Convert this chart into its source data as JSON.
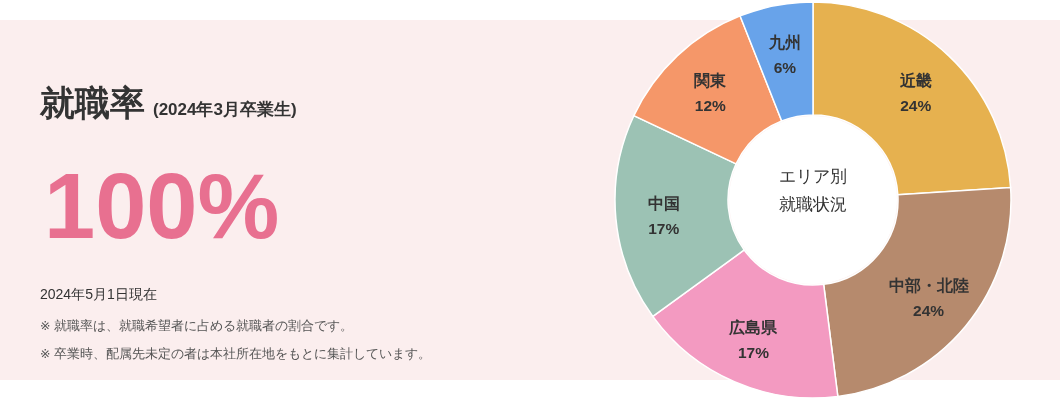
{
  "chart_data": [
    {
      "type": "other",
      "title": "就職率",
      "subtitle": "(2024年3月卒業生)",
      "annotations": [
        "100%",
        "2024年5月1日現在",
        "※ 就職率は、就職希望者に占める就職者の割合です。",
        "※ 卒業時、配属先未定の者は本社所在地をもとに集計しています。"
      ]
    },
    {
      "type": "donut",
      "title": "エリア別就職状況",
      "categories": [
        "近畿",
        "中部・北陸",
        "広島県",
        "中国",
        "関東",
        "九州"
      ],
      "values": [
        24,
        24,
        17,
        17,
        12,
        6
      ],
      "value_labels": [
        "24%",
        "24%",
        "17%",
        "17%",
        "12%",
        "6%"
      ],
      "colors": [
        "#e6b14f",
        "#b68a6d",
        "#f39ac1",
        "#9cc2b4",
        "#f59769",
        "#68a3ea"
      ]
    }
  ]
}
